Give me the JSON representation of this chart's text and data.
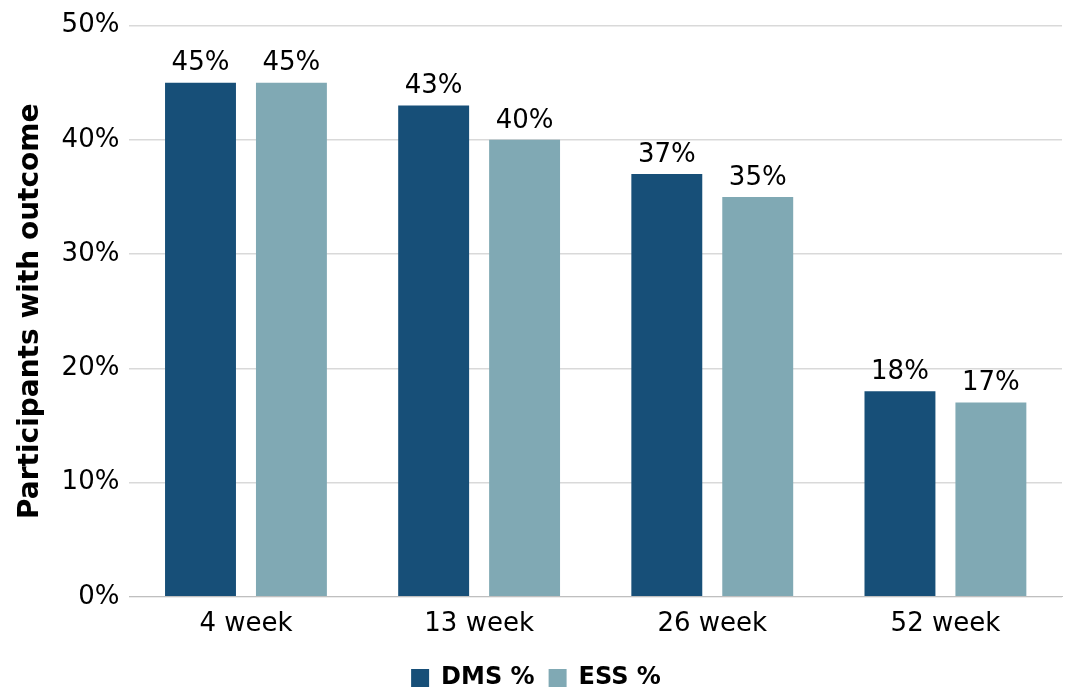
{
  "chart_data": {
    "type": "bar",
    "ylabel": "Participants with outcome",
    "categories": [
      "4 week",
      "13 week",
      "26 week",
      "52 week"
    ],
    "series": [
      {
        "name": "DMS %",
        "color": "#174f78",
        "values": [
          45,
          43,
          37,
          18
        ],
        "value_labels": [
          "45%",
          "43%",
          "37%",
          "18%"
        ]
      },
      {
        "name": "ESS %",
        "color": "#80a9b4",
        "values": [
          45,
          40,
          35,
          17
        ],
        "value_labels": [
          "45%",
          "40%",
          "35%",
          "17%"
        ]
      }
    ],
    "ylim": [
      0,
      50
    ],
    "yticks": [
      {
        "value": 0,
        "label": "0%"
      },
      {
        "value": 10,
        "label": "10%"
      },
      {
        "value": 20,
        "label": "20%"
      },
      {
        "value": 30,
        "label": "30%"
      },
      {
        "value": 40,
        "label": "40%"
      },
      {
        "value": 50,
        "label": "50%"
      }
    ],
    "grid": "y",
    "legend": "bottom"
  }
}
